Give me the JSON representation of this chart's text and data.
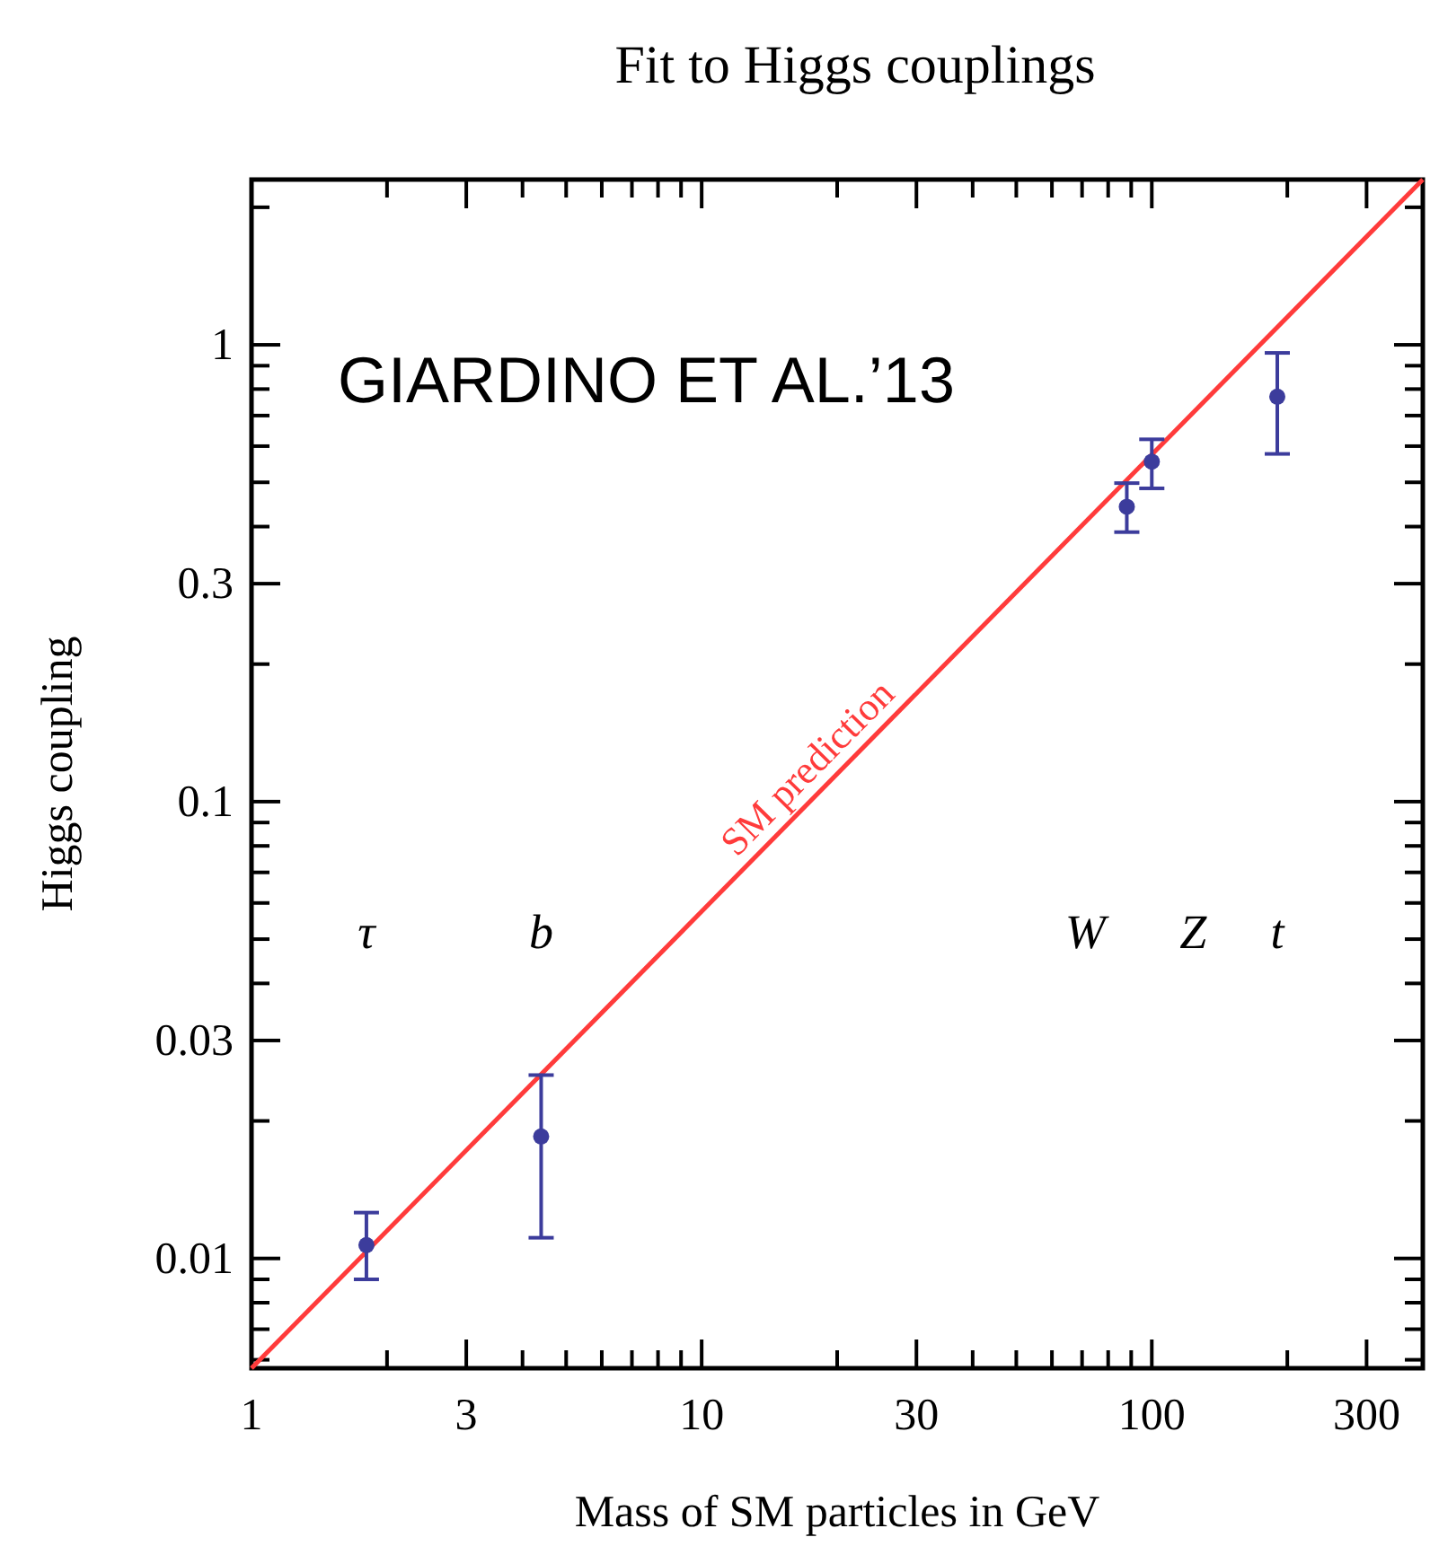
{
  "chart_data": {
    "type": "scatter",
    "title": "Fit to Higgs couplings",
    "xlabel": "Mass of SM particles in GeV",
    "ylabel": "Higgs coupling",
    "log": "xy",
    "grid": false,
    "marker": "circle",
    "xlim": [
      1,
      400
    ],
    "ylim": [
      0.00575,
      2.3
    ],
    "xticks": [
      1,
      {
        "value": 2,
        "label": null
      },
      3,
      {
        "value": 4,
        "label": null
      },
      {
        "value": 5,
        "label": null
      },
      {
        "value": 6,
        "label": null
      },
      {
        "value": 7,
        "label": null
      },
      {
        "value": 8,
        "label": null
      },
      {
        "value": 9,
        "label": null
      },
      10,
      {
        "value": 20,
        "label": null
      },
      30,
      {
        "value": 40,
        "label": null
      },
      {
        "value": 50,
        "label": null
      },
      {
        "value": 60,
        "label": null
      },
      {
        "value": 70,
        "label": null
      },
      {
        "value": 80,
        "label": null
      },
      {
        "value": 90,
        "label": null
      },
      100,
      {
        "value": 200,
        "label": null
      },
      300
    ],
    "yticks": [
      {
        "value": 0.006,
        "label": null
      },
      {
        "value": 0.007,
        "label": null
      },
      {
        "value": 0.008,
        "label": null
      },
      {
        "value": 0.009,
        "label": null
      },
      0.01,
      {
        "value": 0.02,
        "label": null
      },
      0.03,
      {
        "value": 0.04,
        "label": null
      },
      {
        "value": 0.05,
        "label": null
      },
      {
        "value": 0.06,
        "label": null
      },
      {
        "value": 0.07,
        "label": null
      },
      {
        "value": 0.08,
        "label": null
      },
      {
        "value": 0.09,
        "label": null
      },
      0.1,
      {
        "value": 0.2,
        "label": null
      },
      0.3,
      {
        "value": 0.4,
        "label": null
      },
      {
        "value": 0.5,
        "label": null
      },
      {
        "value": 0.6,
        "label": null
      },
      {
        "value": 0.7,
        "label": null
      },
      {
        "value": 0.8,
        "label": null
      },
      {
        "value": 0.9,
        "label": null
      },
      1,
      {
        "value": 2,
        "label": null
      }
    ],
    "series": [
      {
        "type": "line",
        "marker": "none",
        "name": "SM prediction",
        "color": "#ff3b3b",
        "x": [
          1,
          400
        ],
        "values": [
          0.00575,
          2.3
        ]
      },
      {
        "color": "#3c3c9c",
        "x": [
          1.8,
          4.4,
          88,
          100,
          190
        ],
        "values": [
          0.0107,
          0.0185,
          0.442,
          0.555,
          0.77
        ],
        "errors": [
          [
            0.009,
            0.0126
          ],
          [
            0.0111,
            0.0252
          ],
          [
            0.389,
            0.498
          ],
          [
            0.485,
            0.621
          ],
          [
            0.577,
            0.96
          ]
        ]
      }
    ],
    "annotations": [
      "τ",
      "b",
      "W",
      "Z",
      "t",
      "GIARDINO ET AL.’13"
    ]
  }
}
